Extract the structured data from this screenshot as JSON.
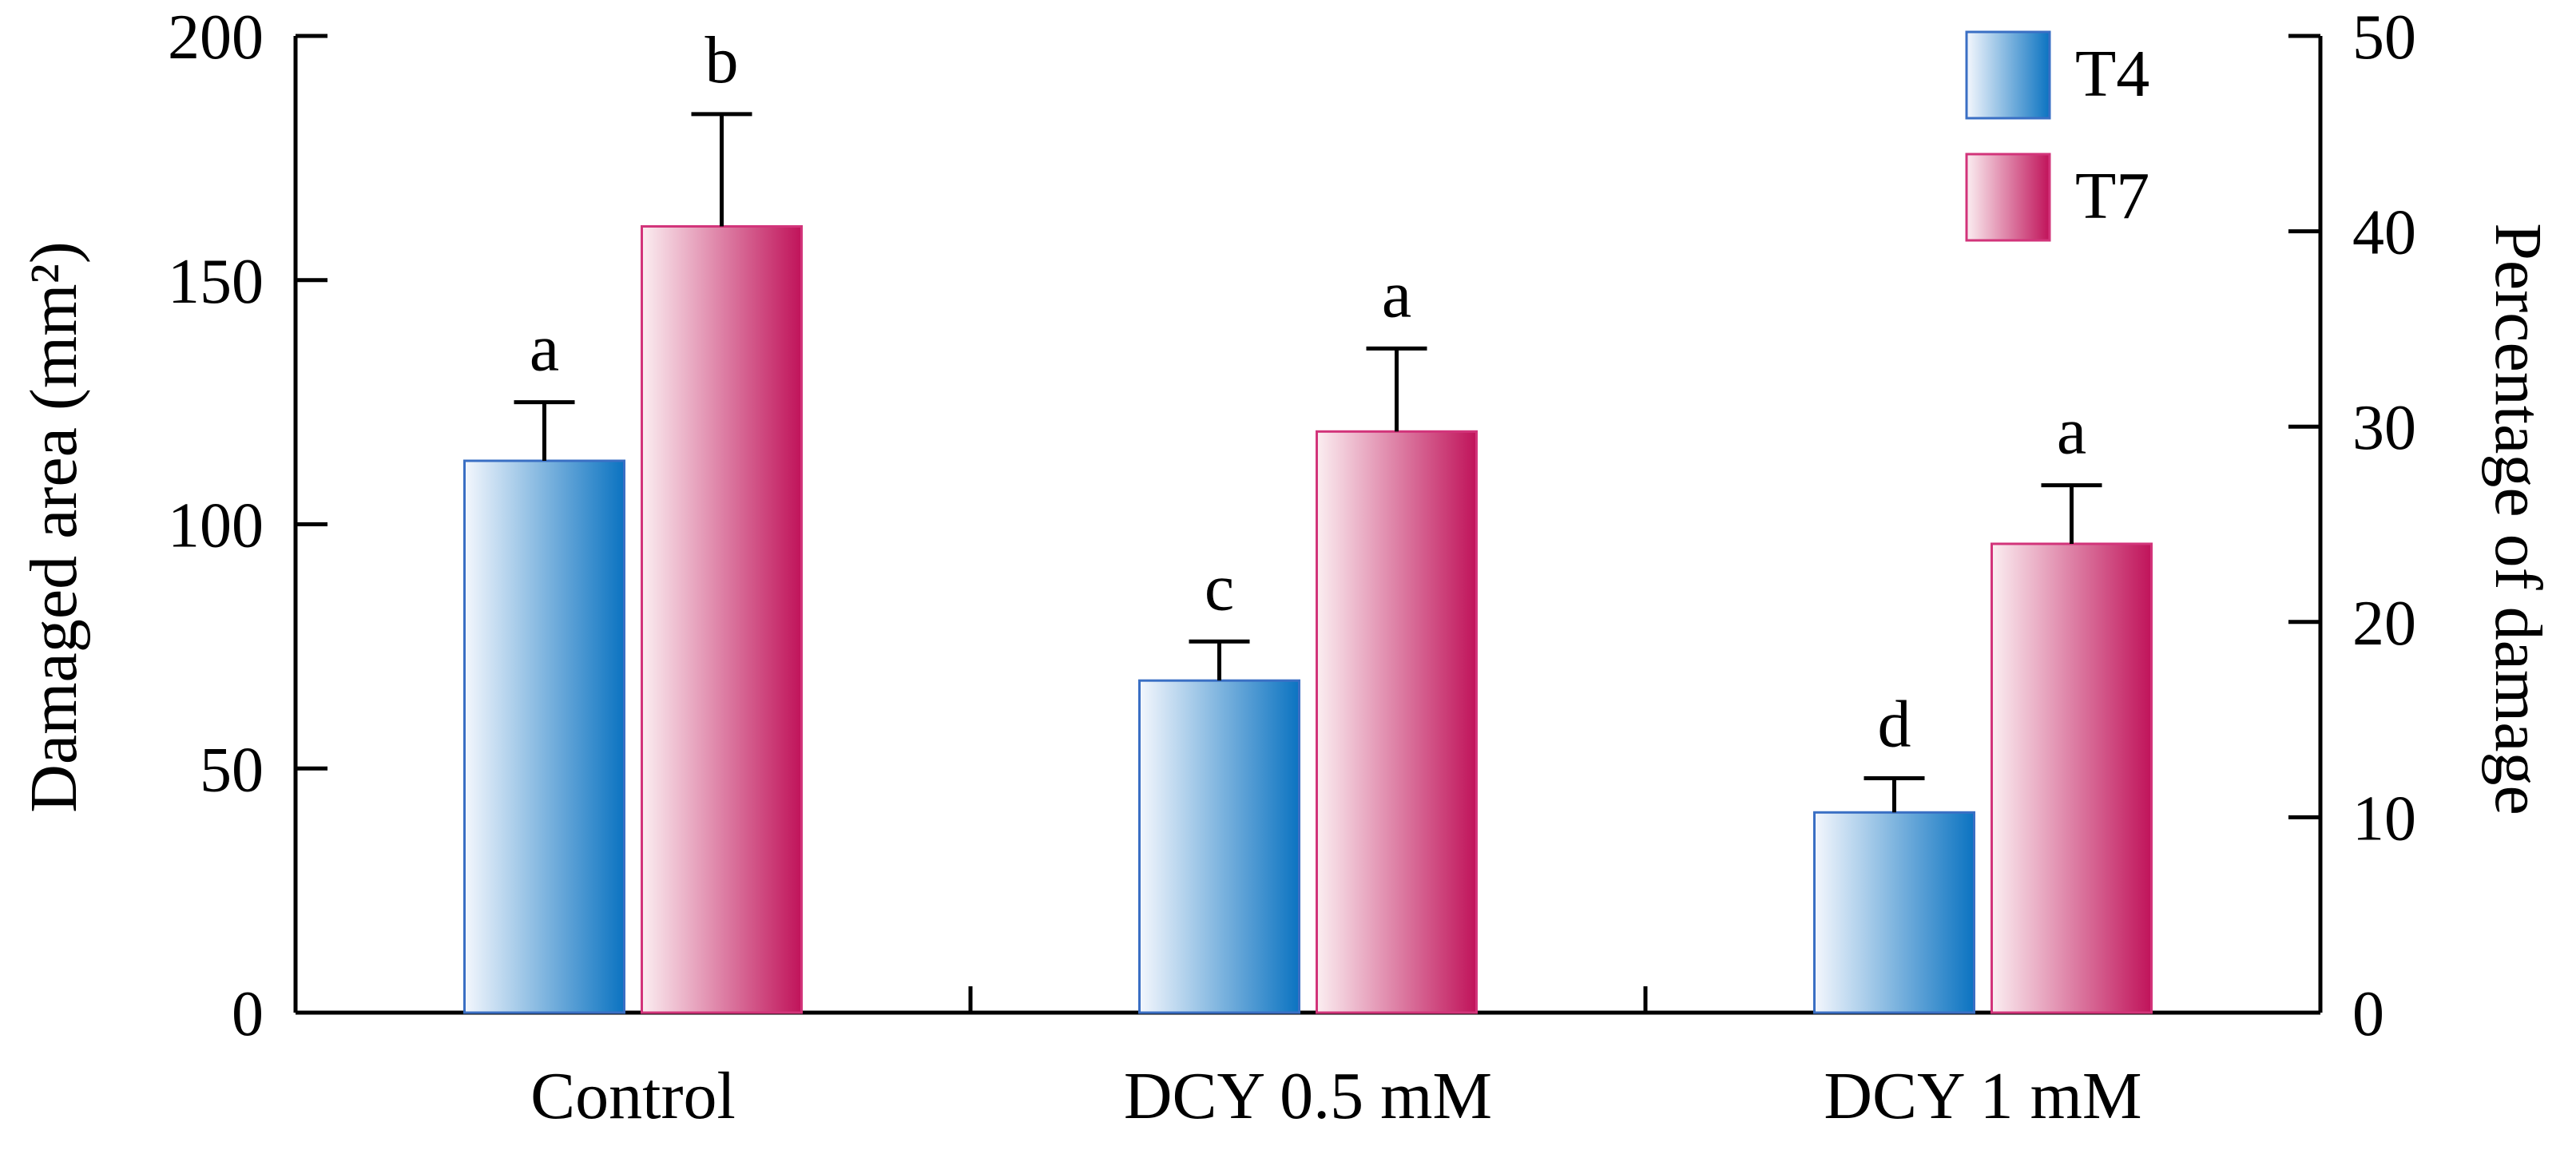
{
  "chart_data": {
    "type": "bar",
    "categories": [
      "Control",
      "DCY 0.5 mM",
      "DCY 1 mM"
    ],
    "series": [
      {
        "name": "T4",
        "values": [
          113,
          68,
          41
        ],
        "errors": [
          12,
          8,
          7
        ],
        "significance": [
          "a",
          "c",
          "d"
        ],
        "color_light": "#f4f7fd",
        "color_dark": "#0b73c1",
        "border": "#3a6fc4"
      },
      {
        "name": "T7",
        "values": [
          161,
          119,
          96
        ],
        "errors": [
          23,
          17,
          12
        ],
        "significance": [
          "b",
          "a",
          "a"
        ],
        "color_light": "#fbeef1",
        "color_dark": "#c0135a",
        "border": "#d2347a"
      }
    ],
    "ylabel": "Damaged area (mm²)",
    "ylim": [
      0,
      200
    ],
    "yticks": [
      "0",
      "50",
      "100",
      "150",
      "200"
    ],
    "y2label": "Percentage of damage",
    "y2lim": [
      0,
      50
    ],
    "y2ticks": [
      "0",
      "10",
      "20",
      "30",
      "40",
      "50"
    ],
    "legend_position": "top-right"
  }
}
